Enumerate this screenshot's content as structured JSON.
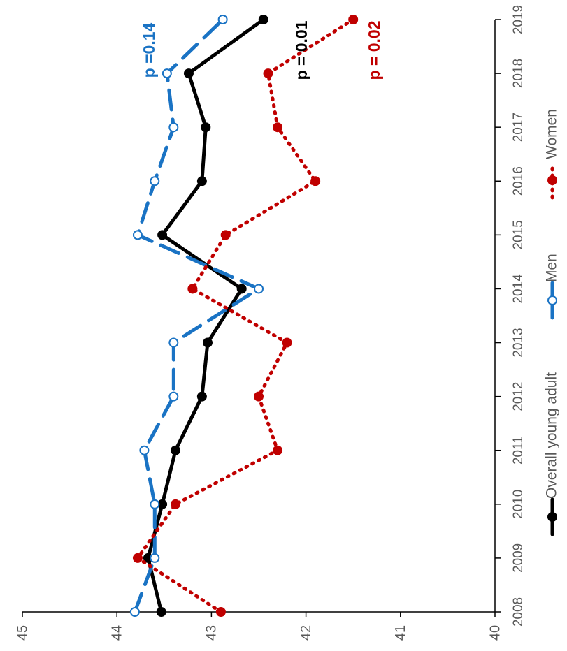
{
  "chart_data": {
    "type": "line",
    "orientation": "rotated-90-clockwise",
    "title": "",
    "xlabel": "",
    "ylabel": "",
    "x": [
      "2008",
      "2009",
      "2010",
      "2011",
      "2012",
      "2013",
      "2014",
      "2015",
      "2016",
      "2017",
      "2018",
      "2019"
    ],
    "ylim": [
      40,
      45
    ],
    "yticks": [
      "40",
      "41",
      "42",
      "43",
      "44",
      "45"
    ],
    "grid": false,
    "legend_position": "bottom",
    "series": [
      {
        "name": "Overall young adult",
        "style": "solid",
        "marker": "filled-circle",
        "color": "#000000",
        "values": [
          43.53,
          43.67,
          43.52,
          43.38,
          43.1,
          43.04,
          42.68,
          43.52,
          43.1,
          43.06,
          43.24,
          42.45
        ],
        "p_label": "p = 0.01"
      },
      {
        "name": "Men",
        "style": "dashed",
        "marker": "open-circle",
        "color": "#1a73c4",
        "values": [
          43.81,
          43.6,
          43.6,
          43.71,
          43.4,
          43.4,
          42.5,
          43.78,
          43.6,
          43.4,
          43.47,
          42.88
        ],
        "p_label": "p =0.14"
      },
      {
        "name": "Women",
        "style": "dotted",
        "marker": "filled-circle",
        "color": "#c00000",
        "values": [
          42.9,
          43.78,
          43.38,
          42.3,
          42.5,
          42.2,
          43.2,
          42.85,
          41.9,
          42.3,
          42.4,
          41.5
        ],
        "p_label": "p = 0.02"
      }
    ]
  }
}
